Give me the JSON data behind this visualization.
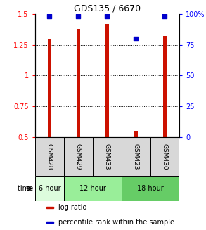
{
  "title": "GDS135 / 6670",
  "samples": [
    "GSM428",
    "GSM429",
    "GSM433",
    "GSM423",
    "GSM430"
  ],
  "log_ratio": [
    1.3,
    1.38,
    1.42,
    0.55,
    1.32
  ],
  "percentile_rank": [
    98,
    98,
    98,
    80,
    98
  ],
  "ylim_left": [
    0.5,
    1.5
  ],
  "ylim_right": [
    0,
    100
  ],
  "yticks_left": [
    0.5,
    0.75,
    1.0,
    1.25,
    1.5
  ],
  "yticks_right": [
    0,
    25,
    50,
    75,
    100
  ],
  "ytick_labels_left": [
    "0.5",
    "0.75",
    "1",
    "1.25",
    "1.5"
  ],
  "ytick_labels_right": [
    "0",
    "25",
    "50",
    "75",
    "100%"
  ],
  "gridlines_at": [
    0.75,
    1.0,
    1.25
  ],
  "time_groups": [
    {
      "label": "6 hour",
      "start": 0,
      "end": 1,
      "color": "#ddfcdd"
    },
    {
      "label": "12 hour",
      "start": 1,
      "end": 3,
      "color": "#99ee99"
    },
    {
      "label": "18 hour",
      "start": 3,
      "end": 5,
      "color": "#66cc66"
    }
  ],
  "bar_color": "#cc1100",
  "marker_color": "#0000cc",
  "bar_bottom": 0.5,
  "bar_width": 0.12,
  "legend_items": [
    {
      "color": "#cc1100",
      "label": "log ratio"
    },
    {
      "color": "#0000cc",
      "label": "percentile rank within the sample"
    }
  ]
}
